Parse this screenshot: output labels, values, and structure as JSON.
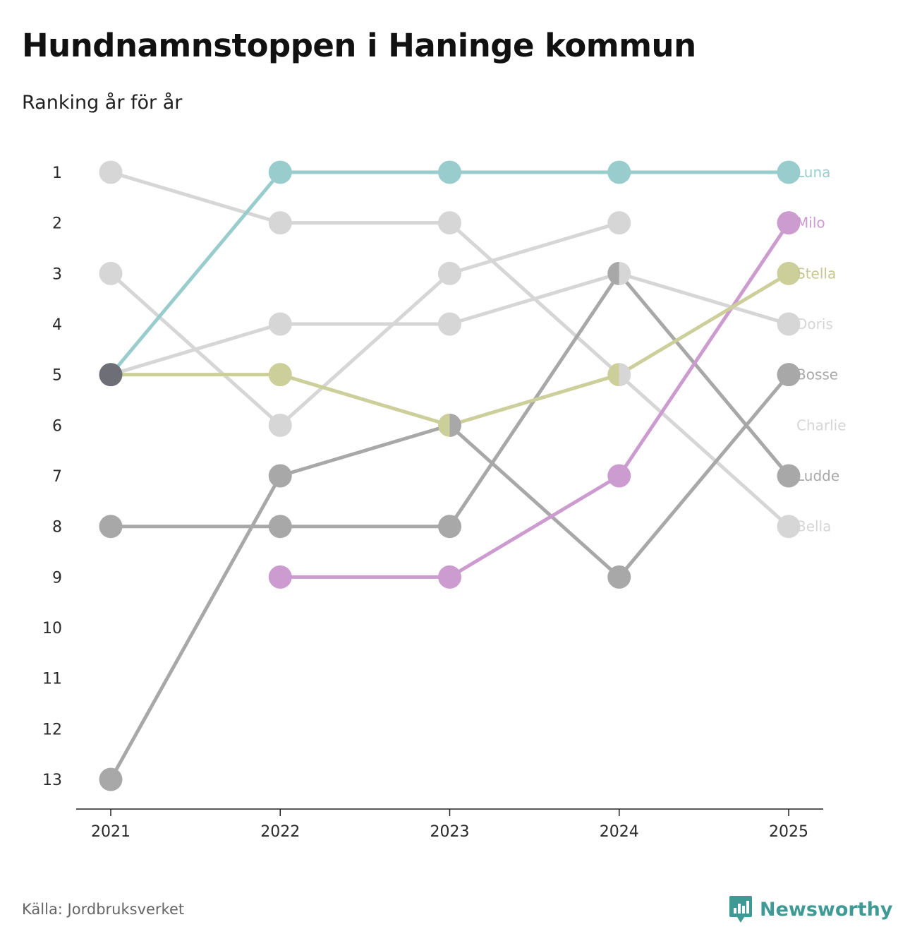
{
  "header": {
    "title": "Hundnamnstoppen i Haninge kommun",
    "subtitle": "Ranking år för år"
  },
  "footer": {
    "source": "Källa: Jordbruksverket",
    "brand": "Newsworthy",
    "brand_icon": "bar-chart-icon"
  },
  "chart_data": {
    "type": "line",
    "subtype": "bump-chart",
    "title": "Hundnamnstoppen i Haninge kommun",
    "subtitle": "Ranking år för år",
    "xlabel": "",
    "ylabel": "",
    "categories": [
      "2021",
      "2022",
      "2023",
      "2024",
      "2025"
    ],
    "y_ticks": [
      1,
      2,
      3,
      4,
      5,
      6,
      7,
      8,
      9,
      10,
      11,
      12,
      13
    ],
    "ylim": [
      1,
      13
    ],
    "y_inverted": true,
    "grid": false,
    "legend": "direct labels at right end of lines",
    "series": [
      {
        "name": "Bella",
        "values": [
          1,
          2,
          2,
          5,
          8
        ],
        "color": "#d6d6d6",
        "label_color": "#d6d6d6"
      },
      {
        "name": "Charlie",
        "values": [
          3,
          6,
          3,
          2,
          null
        ],
        "color": "#d6d6d6",
        "label_color": "#d6d6d6"
      },
      {
        "name": "Doris",
        "values": [
          5,
          4,
          4,
          3,
          4
        ],
        "color": "#d6d6d6",
        "label_color": "#d6d6d6"
      },
      {
        "name": "Bosse",
        "values": [
          13,
          7,
          6,
          9,
          5
        ],
        "color": "#a8a8a8",
        "label_color": "#a8a8a8"
      },
      {
        "name": "Ludde",
        "values": [
          8,
          8,
          8,
          3,
          7
        ],
        "color": "#a8a8a8",
        "label_color": "#a8a8a8"
      },
      {
        "name": "Milo",
        "values": [
          null,
          9,
          9,
          7,
          2
        ],
        "color": "#cc9bcf",
        "label_color": "#cc9bcf"
      },
      {
        "name": "Stella",
        "values": [
          5,
          5,
          6,
          5,
          3
        ],
        "color": "#cdcf9b",
        "label_color": "#c6c88f"
      },
      {
        "name": "Luna",
        "values": [
          5,
          1,
          1,
          1,
          1
        ],
        "color": "#99cccc",
        "label_color": "#99cccc"
      }
    ],
    "tie_marker_color": "#6e6e76"
  }
}
